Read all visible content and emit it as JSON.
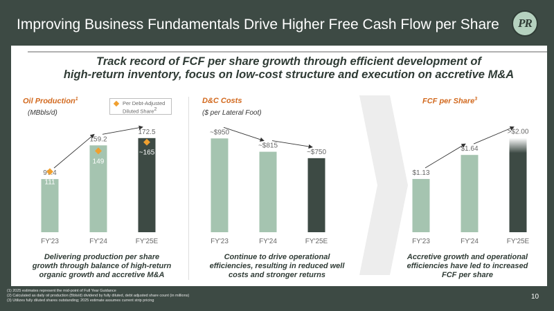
{
  "header": {
    "title": "Improving Business Fundamentals Drive Higher Free Cash Flow per Share",
    "logo_text": "PR"
  },
  "subtitle": {
    "line1": "Track record of FCF per share growth through efficient development of",
    "line2": "high-return inventory, focus on low-cost structure and execution on accretive M&A"
  },
  "colors": {
    "light_green": "#a5c4b0",
    "dark_green": "#3d4a44",
    "accent_orange": "#d2691e",
    "marker_orange": "#f0a030"
  },
  "legend": {
    "line1": "Per Debt-Adjusted",
    "line2": "Diluted Share",
    "sup": "2"
  },
  "chart_data": [
    {
      "type": "bar",
      "title": "Oil Production",
      "title_sup": "1",
      "unit": "(MBbls/d)",
      "categories": [
        "FY'23",
        "FY'24",
        "FY'25E"
      ],
      "values": [
        97.4,
        159.2,
        172.5
      ],
      "value_labels": [
        "97.4",
        "159.2",
        "172.5"
      ],
      "markers": [
        111,
        149,
        165
      ],
      "marker_labels": [
        "111",
        "149",
        "~165"
      ],
      "ylim": [
        0,
        190
      ],
      "caption": {
        "line1": "Delivering production per share",
        "line2": "growth through balance of high-return",
        "line3": "organic growth and accretive M&A"
      }
    },
    {
      "type": "bar",
      "title": "D&C Costs",
      "unit": "($ per Lateral Foot)",
      "categories": [
        "FY'23",
        "FY'24",
        "FY'25E"
      ],
      "values": [
        950,
        815,
        750
      ],
      "value_labels": [
        "~$950",
        "~$815",
        "~$750"
      ],
      "ylim": [
        0,
        1050
      ],
      "caption": {
        "line1": "Continue to drive operational",
        "line2": "efficiencies, resulting in reduced well",
        "line3": "costs and stronger returns"
      }
    },
    {
      "type": "bar",
      "title": "FCF per Share",
      "title_sup": "3",
      "categories": [
        "FY'23",
        "FY'24",
        "FY'25E"
      ],
      "values": [
        1.13,
        1.64,
        2.0
      ],
      "value_labels": [
        "$1.13",
        "$1.64",
        ">$2.00"
      ],
      "ylim": [
        0,
        2.2
      ],
      "caption": {
        "line1": "Accretive growth and operational",
        "line2": "efficiencies have led to increased",
        "line3": "FCF per share"
      }
    }
  ],
  "footnotes": [
    "(1)    2025 estimates represent the mid-point of Full Year Guidance",
    "(2)    Calculated as daily oil production (Bbls/d) dividend by fully diluted, debt adjusted share count (in millions)",
    "(3)    Utilizes fully diluted shares outstanding; 2025 estimate assumes current strip pricing"
  ],
  "page_number": "10"
}
